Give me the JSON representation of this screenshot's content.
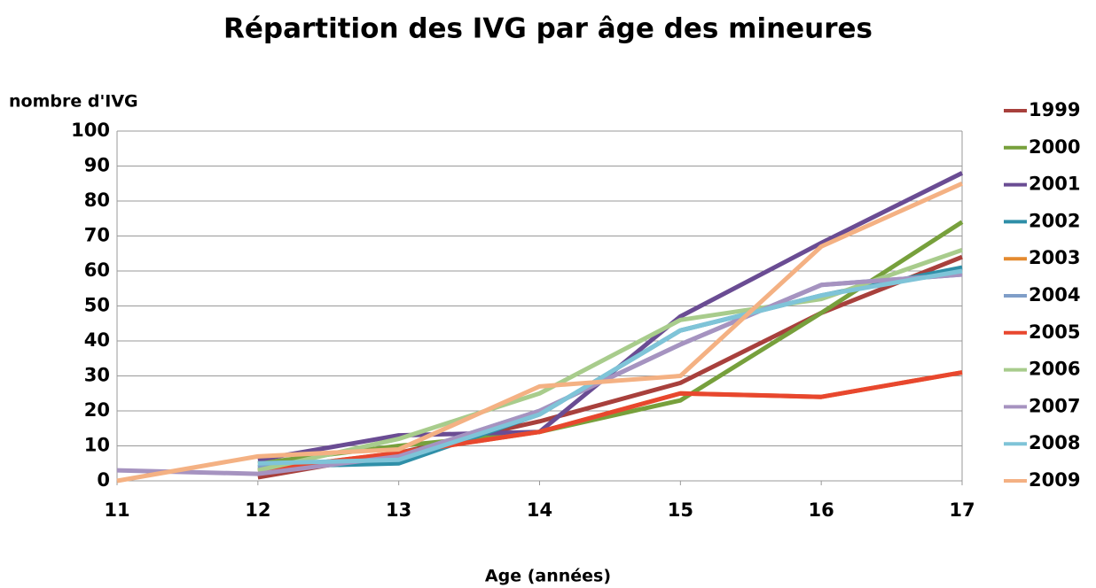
{
  "chart_data": {
    "type": "line",
    "title": "Répartition des IVG par âge des mineures",
    "y_label": "nombre d'IVG",
    "x_label": "Age (années)",
    "x": [
      11,
      12,
      13,
      14,
      15,
      16,
      17
    ],
    "xlim": [
      11,
      17
    ],
    "xticks": [
      11,
      12,
      13,
      14,
      15,
      16,
      17
    ],
    "ylim": [
      0,
      100
    ],
    "yticks": [
      0,
      10,
      20,
      30,
      40,
      50,
      60,
      70,
      80,
      90,
      100
    ],
    "grid": true,
    "legend": "right",
    "series": [
      {
        "name": "1999",
        "color": "#a8403c",
        "values": [
          null,
          1,
          8,
          17,
          28,
          48,
          64
        ]
      },
      {
        "name": "2000",
        "color": "#77a03c",
        "values": [
          null,
          5,
          10,
          14,
          23,
          48,
          74
        ]
      },
      {
        "name": "2001",
        "color": "#6a4c93",
        "values": [
          null,
          6,
          13,
          14,
          47,
          68,
          88
        ]
      },
      {
        "name": "2002",
        "color": "#2f8fa8",
        "values": [
          null,
          4,
          5,
          19,
          43,
          53,
          61
        ]
      },
      {
        "name": "2003",
        "color": "#e48a2f",
        "values": [
          null,
          3,
          8,
          14,
          25,
          24,
          31
        ]
      },
      {
        "name": "2004",
        "color": "#7f9ec8",
        "values": [
          null,
          4,
          7,
          20,
          39,
          56,
          59
        ]
      },
      {
        "name": "2005",
        "color": "#e8472e",
        "values": [
          null,
          3,
          8,
          14,
          25,
          24,
          31
        ]
      },
      {
        "name": "2006",
        "color": "#a8cc8c",
        "values": [
          null,
          3,
          12,
          25,
          46,
          52,
          66
        ]
      },
      {
        "name": "2007",
        "color": "#a693c0",
        "values": [
          3,
          2,
          7,
          20,
          39,
          56,
          59
        ]
      },
      {
        "name": "2008",
        "color": "#7fc4d8",
        "values": [
          null,
          5,
          6,
          19,
          43,
          53,
          60
        ]
      },
      {
        "name": "2009",
        "color": "#f4b183",
        "values": [
          0,
          7,
          9,
          27,
          30,
          67,
          85
        ]
      }
    ]
  }
}
